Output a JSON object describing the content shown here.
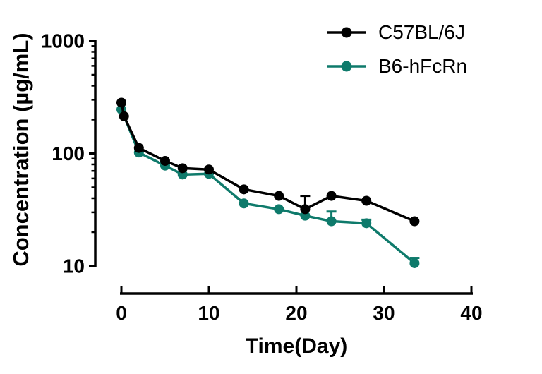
{
  "figure": {
    "background": "#ffffff",
    "text_color": "#000000"
  },
  "chart_data": {
    "type": "line",
    "title": "",
    "xlabel": "Time(Day)",
    "ylabel": "Concentration (µg/mL)",
    "grid": false,
    "legend_position": "top-right",
    "x_axis": {
      "lim": [
        0,
        40
      ],
      "ticks": [
        0,
        10,
        20,
        30,
        40
      ],
      "tick_labels": [
        "0",
        "10",
        "20",
        "30",
        "40"
      ]
    },
    "y_axis": {
      "scale": "log10",
      "lim": [
        10,
        1000
      ],
      "ticks": [
        10,
        100,
        1000
      ],
      "tick_labels": [
        "10",
        "100",
        "1000"
      ],
      "minor_ticks": "log-decade-2-to-9"
    },
    "series": [
      {
        "name": "C57BL/6J",
        "color": "#000000",
        "marker": "circle",
        "x": [
          0,
          0.3,
          2,
          5,
          7,
          10,
          14,
          18,
          21,
          24,
          28,
          33.5
        ],
        "y": [
          283,
          214,
          112,
          86,
          74,
          72,
          48,
          42,
          32,
          42,
          38,
          25
        ],
        "err_up": [
          0,
          0,
          0,
          0,
          0,
          0,
          0,
          0,
          10,
          0,
          0,
          0
        ]
      },
      {
        "name": "B6-hFcRn",
        "color": "#0E7A6B",
        "marker": "circle",
        "x": [
          0,
          2,
          5,
          7,
          10,
          14,
          18,
          21,
          24,
          28,
          33.5
        ],
        "y": [
          246,
          102,
          78,
          65,
          66,
          36,
          32,
          28,
          25,
          24,
          10.6
        ],
        "err_up": [
          0,
          0,
          0,
          0,
          0,
          0,
          0,
          0,
          5.5,
          1.8,
          1.2
        ]
      }
    ]
  }
}
